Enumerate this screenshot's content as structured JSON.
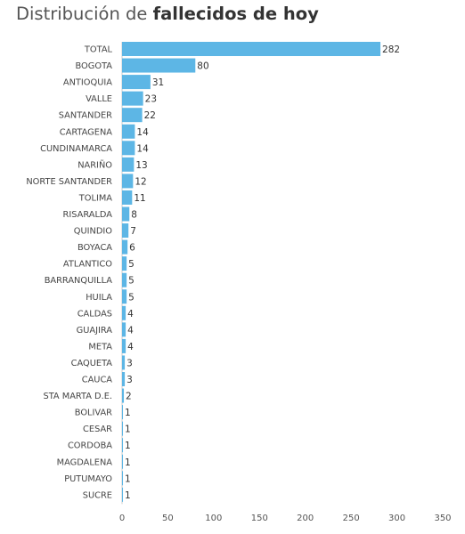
{
  "title": {
    "prefix": "Distribución de ",
    "bold": "fallecidos de hoy"
  },
  "colors": {
    "bar": "#5db6e5",
    "axis": "#cccccc"
  },
  "chart_data": {
    "type": "bar",
    "orientation": "horizontal",
    "categories": [
      "TOTAL",
      "BOGOTA",
      "ANTIOQUIA",
      "VALLE",
      "SANTANDER",
      "CARTAGENA",
      "CUNDINAMARCA",
      "NARIÑO",
      "NORTE SANTANDER",
      "TOLIMA",
      "RISARALDA",
      "QUINDIO",
      "BOYACA",
      "ATLANTICO",
      "BARRANQUILLA",
      "HUILA",
      "CALDAS",
      "GUAJIRA",
      "META",
      "CAQUETA",
      "CAUCA",
      "STA MARTA D.E.",
      "BOLIVAR",
      "CESAR",
      "CORDOBA",
      "MAGDALENA",
      "PUTUMAYO",
      "SUCRE"
    ],
    "values": [
      282,
      80,
      31,
      23,
      22,
      14,
      14,
      13,
      12,
      11,
      8,
      7,
      6,
      5,
      5,
      5,
      4,
      4,
      4,
      3,
      3,
      2,
      1,
      1,
      1,
      1,
      1,
      1
    ],
    "xlim": [
      0,
      350
    ],
    "xticks": [
      0,
      50,
      100,
      150,
      200,
      250,
      300,
      350
    ],
    "grid": false,
    "legend": "none"
  }
}
